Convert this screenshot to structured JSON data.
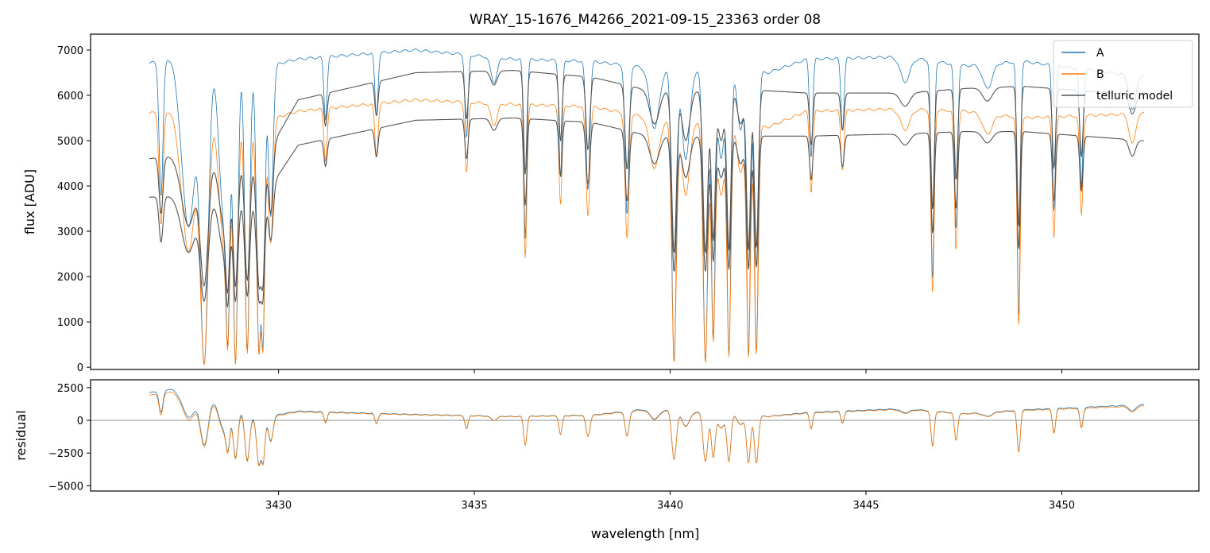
{
  "chart_data": {
    "type": "line",
    "title": "WRAY_15-1676_M4266_2021-09-15_23363  order 08",
    "xlabel": "wavelength [nm]",
    "xlim": [
      3425.2,
      3453.5
    ],
    "x_ticks": [
      3430,
      3435,
      3440,
      3445,
      3450
    ],
    "colors": {
      "A": "#1f77b4",
      "B": "#ff7f0e",
      "model": "#555555",
      "zero": "#808080"
    },
    "legend": {
      "position": "top-right",
      "entries": [
        "A",
        "B",
        "telluric model"
      ]
    },
    "spectrum_range": [
      3426.7,
      3452.1
    ],
    "lines": [
      {
        "c": 3427.0,
        "d": 0.45,
        "w": 0.05
      },
      {
        "c": 3427.7,
        "d": 0.55,
        "w": 0.18
      },
      {
        "c": 3428.1,
        "d": 1.0,
        "w": 0.1
      },
      {
        "c": 3428.6,
        "d": 0.5,
        "w": 0.12
      },
      {
        "c": 3428.7,
        "d": 0.9,
        "w": 0.05
      },
      {
        "c": 3428.9,
        "d": 1.0,
        "w": 0.06
      },
      {
        "c": 3429.2,
        "d": 0.95,
        "w": 0.06
      },
      {
        "c": 3429.5,
        "d": 0.95,
        "w": 0.06
      },
      {
        "c": 3429.6,
        "d": 0.92,
        "w": 0.05
      },
      {
        "c": 3429.8,
        "d": 0.5,
        "w": 0.06
      },
      {
        "c": 3431.2,
        "d": 0.2,
        "w": 0.04
      },
      {
        "c": 3432.5,
        "d": 0.2,
        "w": 0.04
      },
      {
        "c": 3434.8,
        "d": 0.27,
        "w": 0.04
      },
      {
        "c": 3435.5,
        "d": 0.08,
        "w": 0.08
      },
      {
        "c": 3436.3,
        "d": 0.58,
        "w": 0.04
      },
      {
        "c": 3437.2,
        "d": 0.38,
        "w": 0.04
      },
      {
        "c": 3437.9,
        "d": 0.42,
        "w": 0.05
      },
      {
        "c": 3438.9,
        "d": 0.5,
        "w": 0.05
      },
      {
        "c": 3439.6,
        "d": 0.2,
        "w": 0.12
      },
      {
        "c": 3440.1,
        "d": 0.98,
        "w": 0.06
      },
      {
        "c": 3440.4,
        "d": 0.3,
        "w": 0.1
      },
      {
        "c": 3440.9,
        "d": 0.98,
        "w": 0.06
      },
      {
        "c": 3441.1,
        "d": 0.9,
        "w": 0.05
      },
      {
        "c": 3441.3,
        "d": 0.3,
        "w": 0.08
      },
      {
        "c": 3441.5,
        "d": 0.96,
        "w": 0.05
      },
      {
        "c": 3441.8,
        "d": 0.2,
        "w": 0.08
      },
      {
        "c": 3442.0,
        "d": 0.96,
        "w": 0.05
      },
      {
        "c": 3442.2,
        "d": 0.95,
        "w": 0.05
      },
      {
        "c": 3443.6,
        "d": 0.32,
        "w": 0.04
      },
      {
        "c": 3444.4,
        "d": 0.23,
        "w": 0.04
      },
      {
        "c": 3446.0,
        "d": 0.08,
        "w": 0.12
      },
      {
        "c": 3446.7,
        "d": 0.72,
        "w": 0.04
      },
      {
        "c": 3447.3,
        "d": 0.55,
        "w": 0.04
      },
      {
        "c": 3448.1,
        "d": 0.08,
        "w": 0.12
      },
      {
        "c": 3448.9,
        "d": 0.84,
        "w": 0.04
      },
      {
        "c": 3449.8,
        "d": 0.48,
        "w": 0.04
      },
      {
        "c": 3450.5,
        "d": 0.4,
        "w": 0.04
      },
      {
        "c": 3451.8,
        "d": 0.12,
        "w": 0.08
      }
    ],
    "panels": [
      {
        "name": "flux",
        "ylabel": "flux [ADU]",
        "ylim": [
          -50,
          7350
        ],
        "y_ticks": [
          0,
          1000,
          2000,
          3000,
          4000,
          5000,
          6000,
          7000
        ],
        "series": [
          {
            "name": "A",
            "continuum": [
              [
                3426.7,
                6700
              ],
              [
                3427.5,
                6950
              ],
              [
                3429.5,
                6600
              ],
              [
                3430.5,
                6800
              ],
              [
                3433.5,
                7000
              ],
              [
                3436,
                6800
              ],
              [
                3438,
                6750
              ],
              [
                3439.5,
                6600
              ],
              [
                3442.5,
                6500
              ],
              [
                3443.5,
                6800
              ],
              [
                3446,
                6850
              ],
              [
                3447.5,
                6650
              ],
              [
                3449,
                6750
              ],
              [
                3452.1,
                6400
              ]
            ]
          },
          {
            "name": "B",
            "continuum": [
              [
                3426.7,
                5600
              ],
              [
                3427.5,
                5750
              ],
              [
                3429.5,
                5400
              ],
              [
                3430.5,
                5650
              ],
              [
                3433.5,
                5900
              ],
              [
                3436,
                5800
              ],
              [
                3438,
                5750
              ],
              [
                3439.5,
                5500
              ],
              [
                3442.5,
                5300
              ],
              [
                3443.5,
                5650
              ],
              [
                3446,
                5700
              ],
              [
                3447.5,
                5650
              ],
              [
                3449,
                5500
              ],
              [
                3452.1,
                5600
              ]
            ]
          },
          {
            "name": "telluric model",
            "continuum": [
              [
                3426.7,
                4600
              ],
              [
                3427.5,
                4700
              ],
              [
                3429.5,
                4400
              ],
              [
                3430.5,
                5900
              ],
              [
                3433.5,
                6500
              ],
              [
                3436,
                6550
              ],
              [
                3438,
                6400
              ],
              [
                3439.5,
                6100
              ],
              [
                3442.5,
                6100
              ],
              [
                3443.5,
                6050
              ],
              [
                3446,
                6050
              ],
              [
                3447.5,
                6150
              ],
              [
                3449,
                6200
              ],
              [
                3452.1,
                6000
              ]
            ]
          },
          {
            "name": "telluric model",
            "continuum": [
              [
                3426.7,
                3750
              ],
              [
                3427.5,
                3800
              ],
              [
                3429.5,
                3600
              ],
              [
                3430.5,
                4900
              ],
              [
                3433.5,
                5450
              ],
              [
                3436,
                5500
              ],
              [
                3438,
                5400
              ],
              [
                3439.5,
                5100
              ],
              [
                3442.5,
                5100
              ],
              [
                3443.5,
                5100
              ],
              [
                3446,
                5150
              ],
              [
                3447.5,
                5200
              ],
              [
                3449,
                5200
              ],
              [
                3452.1,
                5000
              ]
            ]
          }
        ]
      },
      {
        "name": "residual",
        "ylabel": "residual",
        "ylim": [
          -5400,
          3100
        ],
        "y_ticks": [
          -5000,
          -2500,
          0,
          2500
        ],
        "series": [
          {
            "name": "A",
            "continuum": [
              [
                3426.7,
                2100
              ],
              [
                3427.5,
                2600
              ],
              [
                3429.5,
                200
              ],
              [
                3430.5,
                700
              ],
              [
                3433.5,
                450
              ],
              [
                3436,
                300
              ],
              [
                3438,
                400
              ],
              [
                3439.5,
                900
              ],
              [
                3442.5,
                300
              ],
              [
                3443.5,
                600
              ],
              [
                3446,
                900
              ],
              [
                3447.5,
                500
              ],
              [
                3449,
                800
              ],
              [
                3452.1,
                1200
              ]
            ]
          },
          {
            "name": "B",
            "continuum": [
              [
                3426.7,
                1900
              ],
              [
                3427.5,
                2400
              ],
              [
                3429.5,
                100
              ],
              [
                3430.5,
                650
              ],
              [
                3433.5,
                420
              ],
              [
                3436,
                280
              ],
              [
                3438,
                370
              ],
              [
                3439.5,
                850
              ],
              [
                3442.5,
                280
              ],
              [
                3443.5,
                550
              ],
              [
                3446,
                850
              ],
              [
                3447.5,
                480
              ],
              [
                3449,
                750
              ],
              [
                3452.1,
                1100
              ]
            ]
          }
        ]
      }
    ]
  }
}
